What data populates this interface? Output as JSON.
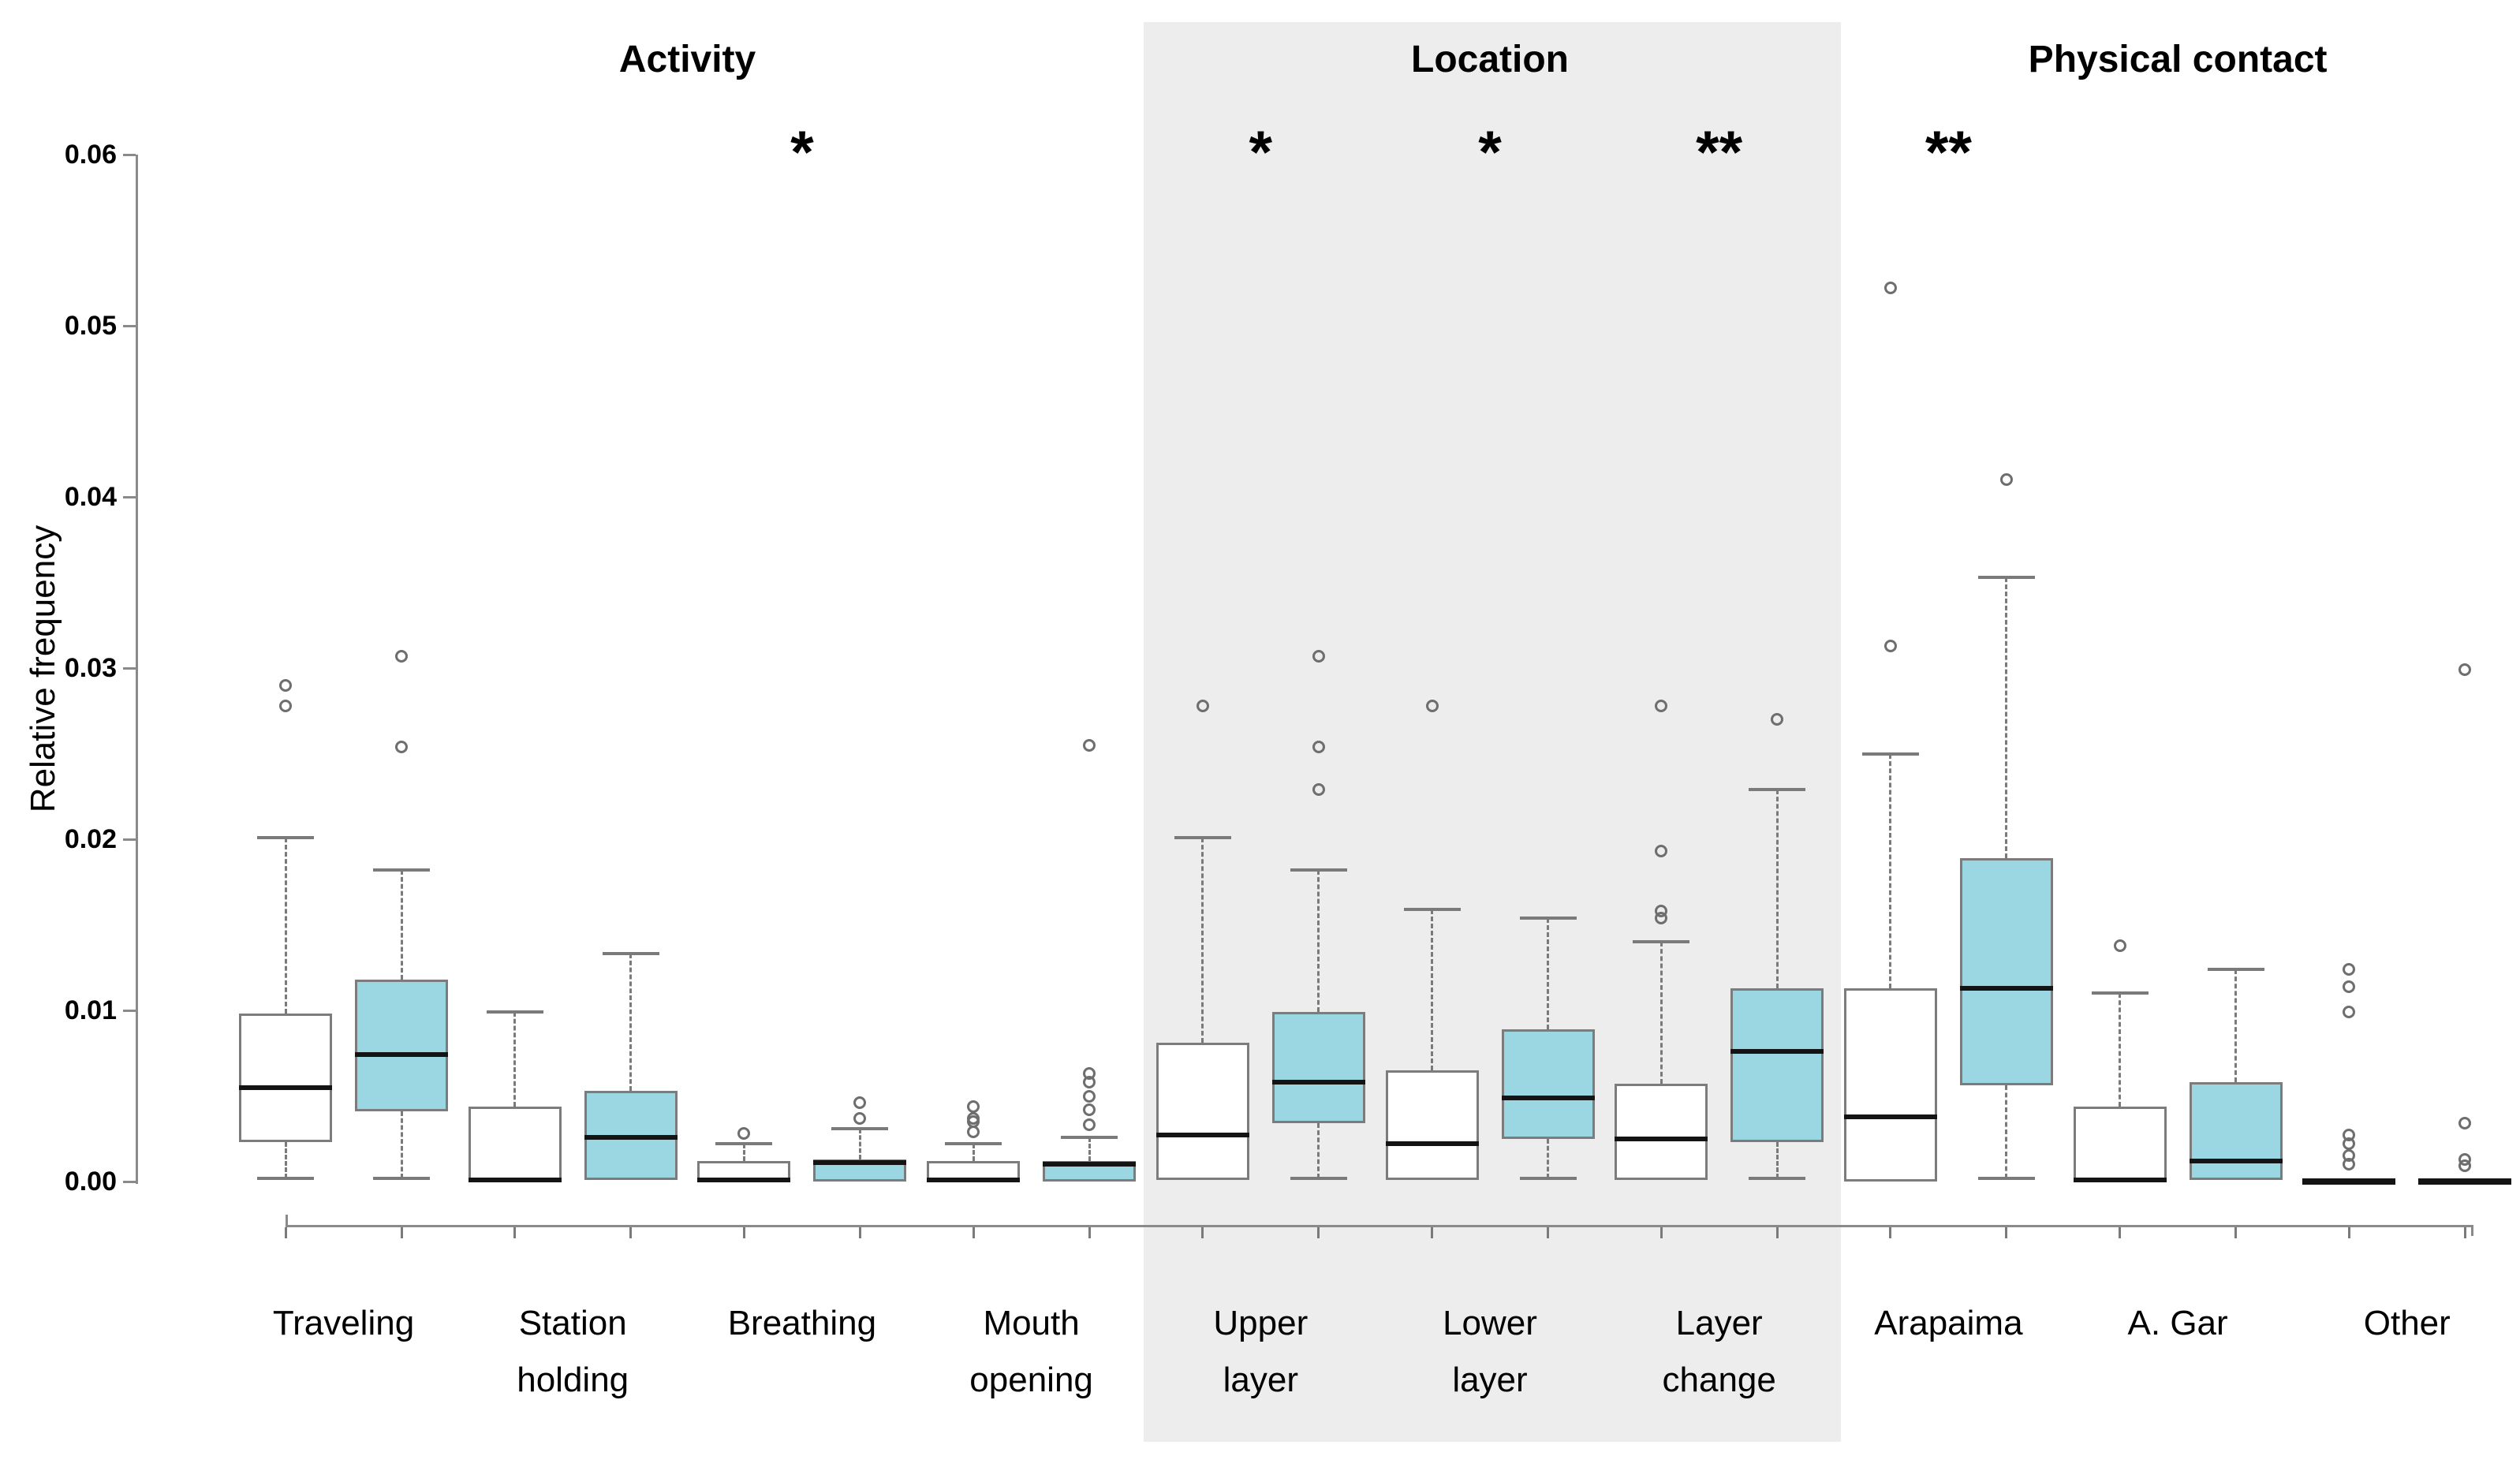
{
  "chart_data": {
    "type": "boxplot",
    "title": "",
    "xlabel": "",
    "ylabel": "Relative frequency",
    "ylim": [
      0.0,
      0.06
    ],
    "ytick_labels": [
      "0.00",
      "0.01",
      "0.02",
      "0.03",
      "0.04",
      "0.05",
      "0.06"
    ],
    "grid": false,
    "legend": "none visible",
    "series_fills": [
      "#ffffff",
      "#9ad7e3"
    ],
    "colors": {
      "blue_fill": "#9ad7e3",
      "white_fill": "#ffffff",
      "highlight_band": "#ededed",
      "box_border": "#7c7c7c",
      "whisker": "#7a7a7a",
      "outlier": "#6e6e6e",
      "median": "#141414",
      "axis": "#8a8a8a",
      "text": "#000000"
    },
    "sections": [
      {
        "label": "Activity",
        "category_span": [
          0,
          3
        ],
        "shaded": false
      },
      {
        "label": "Location",
        "category_span": [
          4,
          6
        ],
        "shaded": true
      },
      {
        "label": "Physical contact",
        "category_span": [
          7,
          9
        ],
        "shaded": false
      }
    ],
    "categories": [
      {
        "label_lines": [
          "Traveling"
        ],
        "significance": "",
        "boxes": [
          {
            "fill": "white",
            "whisker_low": 0.0002,
            "q1": 0.0023,
            "median": 0.0055,
            "q3": 0.0098,
            "whisker_high": 0.0201,
            "outliers": [
              0.0278,
              0.029
            ]
          },
          {
            "fill": "blue",
            "whisker_low": 0.0002,
            "q1": 0.0041,
            "median": 0.0074,
            "q3": 0.0118,
            "whisker_high": 0.0182,
            "outliers": [
              0.0254,
              0.0307
            ]
          }
        ]
      },
      {
        "label_lines": [
          "Station",
          "holding"
        ],
        "significance": "",
        "boxes": [
          {
            "fill": "white",
            "whisker_low": 0,
            "q1": 0,
            "median": 0.0001,
            "q3": 0.0044,
            "whisker_high": 0.0099,
            "outliers": []
          },
          {
            "fill": "blue",
            "whisker_low": 0.0001,
            "q1": 0.0001,
            "median": 0.0026,
            "q3": 0.0053,
            "whisker_high": 0.0133,
            "outliers": []
          }
        ]
      },
      {
        "label_lines": [
          "Breathing"
        ],
        "significance": "*",
        "boxes": [
          {
            "fill": "white",
            "whisker_low": 0,
            "q1": 0,
            "median": 0.0001,
            "q3": 0.0012,
            "whisker_high": 0.0022,
            "outliers": [
              0.0028
            ]
          },
          {
            "fill": "blue",
            "whisker_low": 0,
            "q1": 0,
            "median": 0.0011,
            "q3": 0.0013,
            "whisker_high": 0.0031,
            "outliers": [
              0.0037,
              0.0046
            ]
          }
        ]
      },
      {
        "label_lines": [
          "Mouth",
          "opening"
        ],
        "significance": "",
        "boxes": [
          {
            "fill": "white",
            "whisker_low": 0,
            "q1": 0,
            "median": 0.0001,
            "q3": 0.0012,
            "whisker_high": 0.0022,
            "outliers": [
              0.0029,
              0.0035,
              0.0037,
              0.0044
            ]
          },
          {
            "fill": "blue",
            "whisker_low": 0,
            "q1": 0,
            "median": 0.001,
            "q3": 0.0012,
            "whisker_high": 0.0026,
            "outliers": [
              0.0033,
              0.0042,
              0.005,
              0.0058,
              0.0063,
              0.0255
            ]
          }
        ]
      },
      {
        "label_lines": [
          "Upper",
          "layer"
        ],
        "significance": "*",
        "boxes": [
          {
            "fill": "white",
            "whisker_low": 0.0001,
            "q1": 0.0001,
            "median": 0.0027,
            "q3": 0.0081,
            "whisker_high": 0.0201,
            "outliers": [
              0.0278
            ]
          },
          {
            "fill": "blue",
            "whisker_low": 0.0002,
            "q1": 0.0034,
            "median": 0.0058,
            "q3": 0.0099,
            "whisker_high": 0.0182,
            "outliers": [
              0.0229,
              0.0254,
              0.0307
            ]
          }
        ]
      },
      {
        "label_lines": [
          "Lower",
          "layer"
        ],
        "significance": "*",
        "boxes": [
          {
            "fill": "white",
            "whisker_low": 0.0001,
            "q1": 0.0001,
            "median": 0.0022,
            "q3": 0.0065,
            "whisker_high": 0.0159,
            "outliers": [
              0.0278
            ]
          },
          {
            "fill": "blue",
            "whisker_low": 0.0002,
            "q1": 0.0025,
            "median": 0.0049,
            "q3": 0.0089,
            "whisker_high": 0.0154,
            "outliers": []
          }
        ]
      },
      {
        "label_lines": [
          "Layer",
          "change"
        ],
        "significance": "**",
        "boxes": [
          {
            "fill": "white",
            "whisker_low": 0.0001,
            "q1": 0.0001,
            "median": 0.0025,
            "q3": 0.0057,
            "whisker_high": 0.014,
            "outliers": [
              0.0154,
              0.0158,
              0.0193,
              0.0278
            ]
          },
          {
            "fill": "blue",
            "whisker_low": 0.0002,
            "q1": 0.0023,
            "median": 0.0076,
            "q3": 0.0113,
            "whisker_high": 0.0229,
            "outliers": [
              0.027
            ]
          }
        ]
      },
      {
        "label_lines": [
          "Arapaima"
        ],
        "significance": "**",
        "boxes": [
          {
            "fill": "white",
            "whisker_low": 0,
            "q1": 0,
            "median": 0.0038,
            "q3": 0.0113,
            "whisker_high": 0.025,
            "outliers": [
              0.0313,
              0.0522
            ]
          },
          {
            "fill": "blue",
            "whisker_low": 0.0002,
            "q1": 0.0056,
            "median": 0.0113,
            "q3": 0.0189,
            "whisker_high": 0.0353,
            "outliers": [
              0.041
            ]
          }
        ]
      },
      {
        "label_lines": [
          "A. Gar"
        ],
        "significance": "",
        "boxes": [
          {
            "fill": "white",
            "whisker_low": 0,
            "q1": 0,
            "median": 0.0001,
            "q3": 0.0044,
            "whisker_high": 0.011,
            "outliers": [
              0.0138
            ]
          },
          {
            "fill": "blue",
            "whisker_low": 0.0001,
            "q1": 0.0001,
            "median": 0.0012,
            "q3": 0.0058,
            "whisker_high": 0.0124,
            "outliers": []
          }
        ]
      },
      {
        "label_lines": [
          "Other"
        ],
        "significance": "",
        "boxes": [
          {
            "fill": "white",
            "whisker_low": 0,
            "q1": 0,
            "median": 0,
            "q3": 0,
            "whisker_high": 0,
            "outliers": [
              0.001,
              0.0015,
              0.0022,
              0.0027,
              0.0099,
              0.0114,
              0.0124
            ]
          },
          {
            "fill": "blue",
            "whisker_low": 0,
            "q1": 0,
            "median": 0,
            "q3": 0,
            "whisker_high": 0,
            "outliers": [
              0.0009,
              0.0013,
              0.0034,
              0.0299
            ]
          }
        ]
      }
    ]
  }
}
